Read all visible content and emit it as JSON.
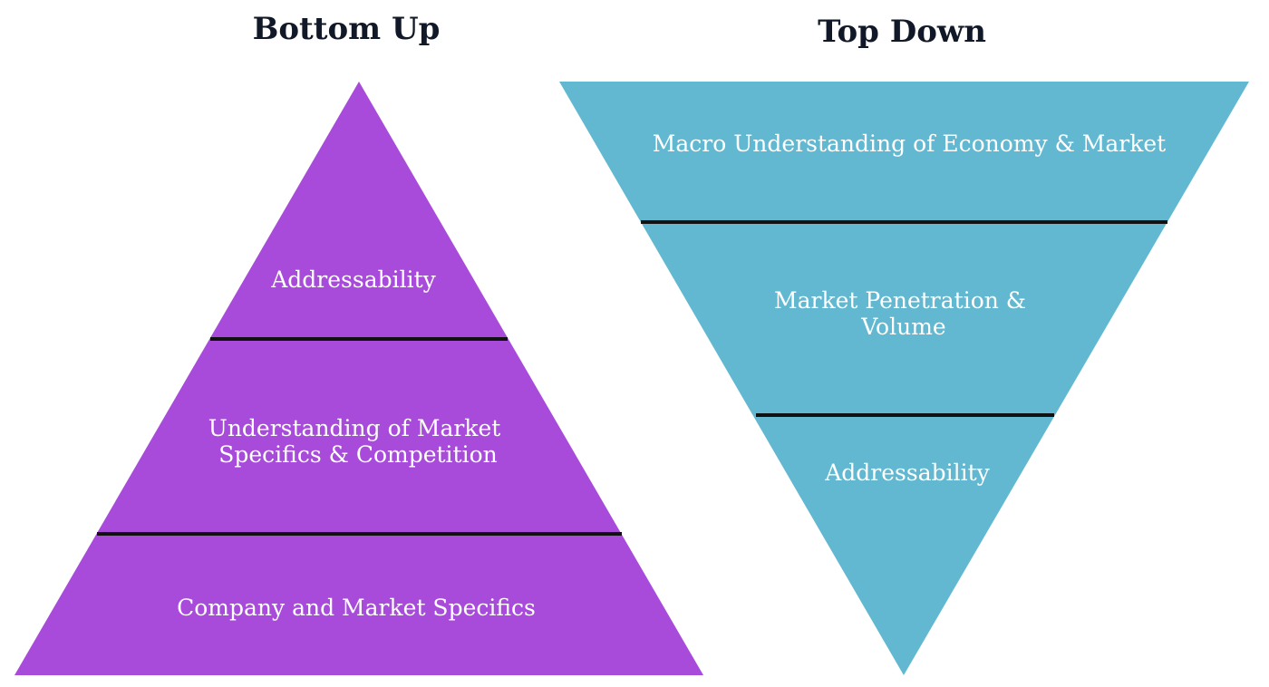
{
  "bottom_up": {
    "title": "Bottom Up",
    "color": "#A84BDB",
    "layers": [
      {
        "lines": [
          "Addressability"
        ]
      },
      {
        "lines": [
          "Understanding of Market",
          "Specifics & Competition"
        ]
      },
      {
        "lines": [
          "Company and Market Specifics"
        ]
      }
    ]
  },
  "top_down": {
    "title": "Top Down",
    "color": "#61B8D0",
    "layers": [
      {
        "lines": [
          "Macro Understanding of Economy & Market"
        ]
      },
      {
        "lines": [
          "Market Penetration &",
          "Volume"
        ]
      },
      {
        "lines": [
          "Addressability"
        ]
      }
    ]
  },
  "divider_color": "#111111"
}
